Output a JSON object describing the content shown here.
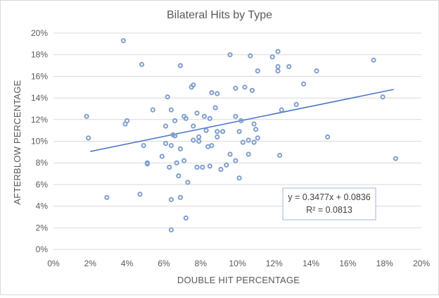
{
  "chart_data": {
    "type": "scatter",
    "title": "Bilateral Hits by Type",
    "xlabel": "DOUBLE HIT PERCENTAGE",
    "ylabel": "AFTERBLOW PERCENTAGE",
    "xlim": [
      0,
      20
    ],
    "ylim": [
      0,
      20
    ],
    "x_ticks": [
      "0%",
      "2%",
      "4%",
      "6%",
      "8%",
      "10%",
      "12%",
      "14%",
      "16%",
      "18%",
      "20%"
    ],
    "y_ticks": [
      "0%",
      "2%",
      "4%",
      "6%",
      "8%",
      "10%",
      "12%",
      "14%",
      "16%",
      "18%",
      "20%"
    ],
    "grid": true,
    "series": [
      {
        "marker_color": "#7f9fcf",
        "points": [
          [
            1.8,
            12.3
          ],
          [
            1.9,
            10.3
          ],
          [
            2.9,
            4.8
          ],
          [
            3.8,
            19.3
          ],
          [
            3.9,
            11.6
          ],
          [
            4.0,
            11.9
          ],
          [
            4.7,
            5.1
          ],
          [
            4.8,
            17.1
          ],
          [
            4.9,
            9.6
          ],
          [
            5.1,
            8.0
          ],
          [
            5.1,
            7.9
          ],
          [
            5.4,
            12.9
          ],
          [
            5.9,
            8.6
          ],
          [
            6.1,
            11.4
          ],
          [
            6.1,
            9.8
          ],
          [
            6.2,
            14.1
          ],
          [
            6.3,
            7.6
          ],
          [
            6.4,
            4.6
          ],
          [
            6.4,
            1.8
          ],
          [
            6.4,
            9.6
          ],
          [
            6.4,
            12.9
          ],
          [
            6.5,
            10.6
          ],
          [
            6.6,
            10.5
          ],
          [
            6.6,
            11.9
          ],
          [
            6.7,
            8.0
          ],
          [
            6.8,
            6.8
          ],
          [
            6.9,
            17.0
          ],
          [
            6.9,
            9.3
          ],
          [
            6.9,
            4.8
          ],
          [
            7.1,
            8.2
          ],
          [
            7.1,
            12.3
          ],
          [
            7.2,
            12.1
          ],
          [
            7.2,
            2.9
          ],
          [
            7.3,
            6.2
          ],
          [
            7.5,
            15.0
          ],
          [
            7.6,
            11.4
          ],
          [
            7.6,
            15.2
          ],
          [
            7.6,
            10.1
          ],
          [
            7.8,
            12.6
          ],
          [
            7.8,
            7.6
          ],
          [
            7.9,
            10.0
          ],
          [
            7.9,
            10.4
          ],
          [
            8.1,
            7.6
          ],
          [
            8.2,
            12.3
          ],
          [
            8.3,
            11.0
          ],
          [
            8.4,
            9.5
          ],
          [
            8.5,
            12.1
          ],
          [
            8.5,
            7.7
          ],
          [
            8.6,
            9.6
          ],
          [
            8.6,
            14.5
          ],
          [
            8.8,
            13.1
          ],
          [
            8.9,
            10.4
          ],
          [
            8.9,
            10.9
          ],
          [
            8.9,
            14.4
          ],
          [
            9.1,
            7.4
          ],
          [
            9.2,
            10.9
          ],
          [
            9.4,
            7.8
          ],
          [
            9.6,
            18.0
          ],
          [
            9.6,
            8.8
          ],
          [
            9.9,
            8.2
          ],
          [
            9.9,
            12.3
          ],
          [
            9.9,
            14.9
          ],
          [
            10.1,
            10.9
          ],
          [
            10.1,
            6.6
          ],
          [
            10.2,
            11.9
          ],
          [
            10.3,
            9.9
          ],
          [
            10.4,
            15.0
          ],
          [
            10.6,
            8.8
          ],
          [
            10.6,
            10.1
          ],
          [
            10.7,
            17.9
          ],
          [
            10.8,
            14.7
          ],
          [
            10.9,
            11.6
          ],
          [
            10.9,
            9.9
          ],
          [
            11.0,
            11.1
          ],
          [
            11.1,
            10.3
          ],
          [
            11.1,
            16.5
          ],
          [
            11.9,
            17.8
          ],
          [
            12.2,
            18.3
          ],
          [
            12.2,
            16.5
          ],
          [
            12.2,
            16.9
          ],
          [
            12.3,
            8.7
          ],
          [
            12.4,
            12.9
          ],
          [
            12.8,
            16.9
          ],
          [
            13.2,
            13.4
          ],
          [
            13.6,
            15.3
          ],
          [
            14.3,
            16.5
          ],
          [
            14.9,
            10.4
          ],
          [
            17.4,
            17.5
          ],
          [
            17.9,
            14.1
          ],
          [
            18.6,
            8.4
          ]
        ]
      }
    ],
    "trendline": {
      "slope": 0.3477,
      "intercept": 0.0836,
      "x_range": [
        2,
        18.5
      ],
      "color": "#4472c4",
      "equation": "y = 0.3477x + 0.0836",
      "r2": "R² = 0.0813"
    },
    "gridline_color": "#d9d9d9"
  }
}
